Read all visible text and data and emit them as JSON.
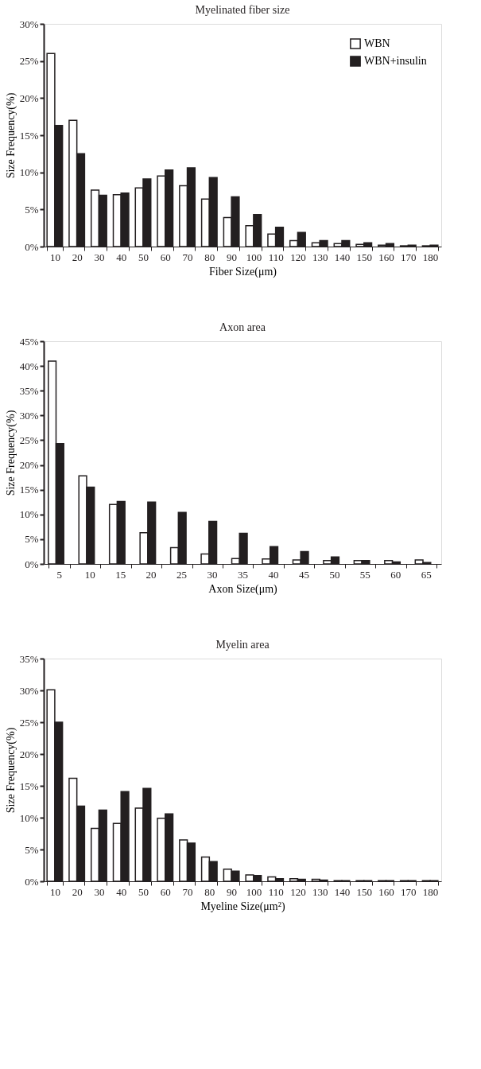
{
  "chart_data": [
    {
      "type": "bar",
      "title": "Myelinated fiber size",
      "xlabel": "Fiber Size(μm)",
      "ylabel": "Size Frequency(%)",
      "categories": [
        "10",
        "20",
        "30",
        "40",
        "50",
        "60",
        "70",
        "80",
        "90",
        "100",
        "110",
        "120",
        "130",
        "140",
        "150",
        "160",
        "170",
        "180"
      ],
      "series": [
        {
          "name": "WBN",
          "color": "#ffffff",
          "values": [
            26,
            17,
            7.6,
            7.0,
            7.9,
            9.5,
            8.2,
            6.4,
            3.9,
            2.8,
            1.7,
            0.8,
            0.5,
            0.4,
            0.3,
            0.2,
            0.1,
            0.1
          ]
        },
        {
          "name": "WBN+insulin",
          "color": "#231f20",
          "values": [
            16.3,
            12.5,
            6.9,
            7.2,
            9.1,
            10.3,
            10.6,
            9.3,
            6.7,
            4.3,
            2.6,
            1.9,
            0.8,
            0.8,
            0.5,
            0.4,
            0.2,
            0.2
          ]
        }
      ],
      "ylim": [
        0,
        30
      ],
      "yticks": [
        {
          "value": 0,
          "label": "0%"
        },
        {
          "value": 5,
          "label": "5%"
        },
        {
          "value": 10,
          "label": "10%"
        },
        {
          "value": 15,
          "label": "15%"
        },
        {
          "value": 20,
          "label": "20%"
        },
        {
          "value": 25,
          "label": "25%"
        },
        {
          "value": 30,
          "label": "30%"
        }
      ],
      "legend": "top right",
      "grid": false
    },
    {
      "type": "bar",
      "title": "Axon area",
      "xlabel": "Axon Size(μm)",
      "ylabel": "Size Frequency(%)",
      "categories": [
        "5",
        "10",
        "15",
        "20",
        "25",
        "30",
        "35",
        "40",
        "45",
        "50",
        "55",
        "60",
        "65"
      ],
      "series": [
        {
          "color": "#ffffff",
          "values": [
            41,
            17.8,
            12,
            6.3,
            3.3,
            2,
            1.1,
            1.0,
            0.8,
            0.7,
            0.7,
            0.7,
            0.8
          ]
        },
        {
          "color": "#231f20",
          "values": [
            24.3,
            15.5,
            12.6,
            12.5,
            10.4,
            8.6,
            6.2,
            3.5,
            2.5,
            1.4,
            0.7,
            0.4,
            0.3
          ]
        }
      ],
      "ylim": [
        0,
        45
      ],
      "yticks": [
        {
          "value": 0,
          "label": "0%"
        },
        {
          "value": 5,
          "label": "5%"
        },
        {
          "value": 10,
          "label": "10%"
        },
        {
          "value": 15,
          "label": "15%"
        },
        {
          "value": 20,
          "label": "20%"
        },
        {
          "value": 25,
          "label": "25%"
        },
        {
          "value": 30,
          "label": "30%"
        },
        {
          "value": 35,
          "label": "35%"
        },
        {
          "value": 40,
          "label": "40%"
        },
        {
          "value": 45,
          "label": "45%"
        }
      ],
      "legend": false,
      "grid": false
    },
    {
      "type": "bar",
      "title": "Myelin area",
      "xlabel": "Myeline Size(μm²)",
      "ylabel": "Size Frequency(%)",
      "categories": [
        "10",
        "20",
        "30",
        "40",
        "50",
        "60",
        "70",
        "80",
        "90",
        "100",
        "110",
        "120",
        "130",
        "140",
        "150",
        "160",
        "170",
        "180"
      ],
      "series": [
        {
          "color": "#ffffff",
          "values": [
            30.1,
            16.2,
            8.3,
            9.1,
            11.5,
            9.9,
            6.5,
            3.8,
            1.9,
            1.0,
            0.7,
            0.4,
            0.3,
            0.1,
            0.1,
            0.1,
            0.1,
            0.1
          ]
        },
        {
          "color": "#231f20",
          "values": [
            25,
            11.8,
            11.2,
            14.1,
            14.6,
            10.6,
            6.0,
            3.1,
            1.6,
            0.9,
            0.4,
            0.3,
            0.2,
            0.1,
            0.1,
            0.1,
            0.1,
            0.1
          ]
        }
      ],
      "ylim": [
        0,
        35
      ],
      "yticks": [
        {
          "value": 0,
          "label": "0%"
        },
        {
          "value": 5,
          "label": "5%"
        },
        {
          "value": 10,
          "label": "10%"
        },
        {
          "value": 15,
          "label": "15%"
        },
        {
          "value": 20,
          "label": "20%"
        },
        {
          "value": 25,
          "label": "25%"
        },
        {
          "value": 30,
          "label": "30%"
        },
        {
          "value": 35,
          "label": "35%"
        }
      ],
      "legend": false,
      "grid": false
    }
  ]
}
